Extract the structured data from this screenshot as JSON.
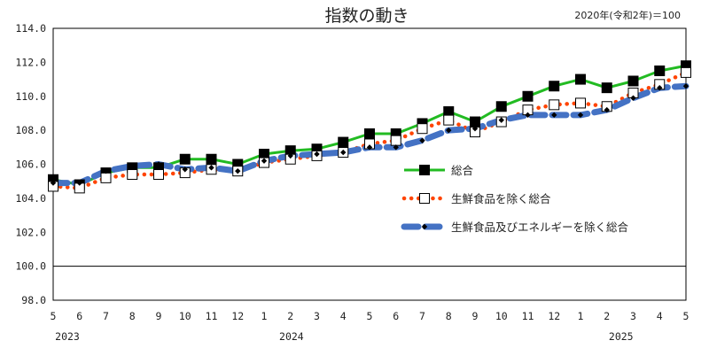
{
  "chart_data": {
    "type": "line",
    "title": "指数の動き",
    "note": "2020年(令和2年)＝100",
    "ylim": [
      98.0,
      114.0
    ],
    "y_ticks": [
      "114.0",
      "112.0",
      "110.0",
      "108.0",
      "106.0",
      "104.0",
      "102.0",
      "100.0",
      "98.0"
    ],
    "x_labels": [
      "5",
      "6",
      "7",
      "8",
      "9",
      "10",
      "11",
      "12",
      "1",
      "2",
      "3",
      "4",
      "5",
      "6",
      "7",
      "8",
      "9",
      "10",
      "11",
      "12",
      "1",
      "2",
      "3",
      "4",
      "5"
    ],
    "year_labels": [
      {
        "label": "2023",
        "index": 0
      },
      {
        "label": "2024",
        "index": 8.5
      },
      {
        "label": "2025",
        "index": 21
      }
    ],
    "reference_line": 100.0,
    "series": [
      {
        "name": "総合",
        "color": "#22bb22",
        "marker": "filled-square",
        "values": [
          105.1,
          104.8,
          105.5,
          105.8,
          105.8,
          106.3,
          106.3,
          106.0,
          106.6,
          106.8,
          106.9,
          107.3,
          107.8,
          107.8,
          108.4,
          109.1,
          108.5,
          109.4,
          110.0,
          110.6,
          111.0,
          110.5,
          110.9,
          111.5,
          111.8
        ]
      },
      {
        "name": "生鮮食品を除く総合",
        "color": "#ff4400",
        "marker": "open-square",
        "values": [
          104.7,
          104.6,
          105.2,
          105.4,
          105.4,
          105.5,
          105.7,
          105.6,
          106.1,
          106.3,
          106.5,
          106.7,
          107.2,
          107.4,
          108.1,
          108.6,
          107.9,
          108.5,
          109.2,
          109.5,
          109.6,
          109.4,
          110.2,
          110.7,
          111.4
        ]
      },
      {
        "name": "生鮮食品及びエネルギーを除く総合",
        "color": "#4472c4",
        "marker": "small-diamond",
        "values": [
          104.9,
          104.9,
          105.6,
          105.9,
          106.0,
          105.7,
          105.8,
          105.6,
          106.2,
          106.5,
          106.6,
          106.7,
          107.0,
          107.0,
          107.4,
          108.0,
          108.1,
          108.6,
          108.9,
          108.9,
          108.9,
          109.2,
          109.9,
          110.5,
          110.6
        ]
      }
    ],
    "legend_position": "right-middle"
  }
}
